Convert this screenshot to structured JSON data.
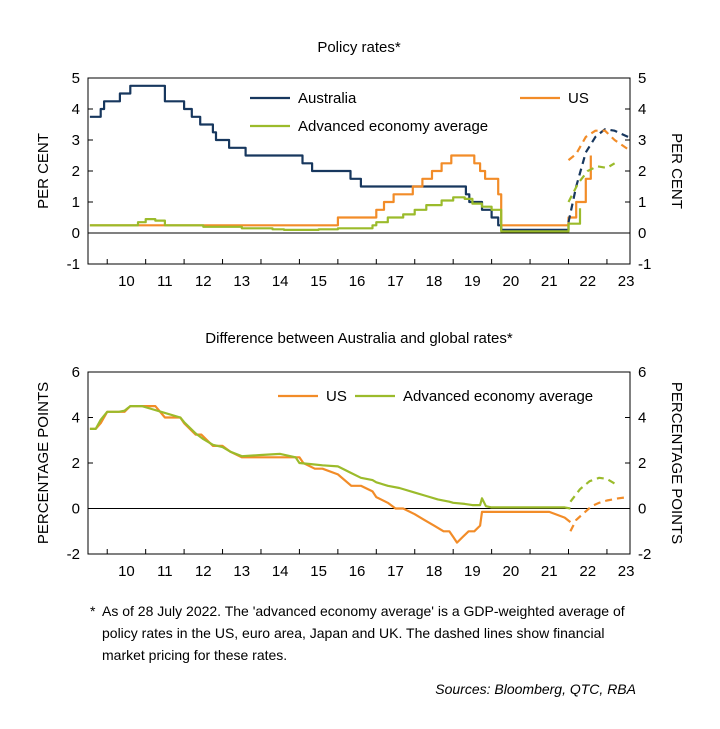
{
  "chart_data": [
    {
      "type": "line",
      "title": "Policy rates*",
      "ylabel_left": "PER CENT",
      "ylabel_right": "PER CENT",
      "ylim": [
        -1,
        5
      ],
      "yticks": [
        "-1",
        "0",
        "1",
        "2",
        "3",
        "4",
        "5"
      ],
      "xlim": [
        2009.5,
        2023.6
      ],
      "xticks": [
        "10",
        "11",
        "12",
        "13",
        "14",
        "15",
        "16",
        "17",
        "18",
        "19",
        "20",
        "21",
        "22",
        "23"
      ],
      "legend": [
        "Australia",
        "US",
        "Advanced economy average"
      ],
      "legend_placement": "top",
      "series": [
        {
          "name": "Australia",
          "color": "#17375e",
          "step": true,
          "x": [
            2009.55,
            2009.75,
            2009.83,
            2009.92,
            2010.0,
            2010.25,
            2010.33,
            2010.42,
            2010.5,
            2010.6,
            2010.9,
            2011.25,
            2011.5,
            2011.83,
            2012.0,
            2012.2,
            2012.42,
            2012.5,
            2012.75,
            2012.83,
            2013.0,
            2013.17,
            2013.33,
            2013.6,
            2014.0,
            2014.5,
            2014.75,
            2015.0,
            2015.08,
            2015.2,
            2015.33,
            2015.5,
            2016.0,
            2016.25,
            2016.33,
            2016.6,
            2016.9,
            2017.0,
            2017.5,
            2018.0,
            2018.5,
            2018.9,
            2019.0,
            2019.33,
            2019.42,
            2019.5,
            2019.75,
            2019.83,
            2020.0,
            2020.17,
            2020.25,
            2020.5,
            2020.83,
            2021.0,
            2021.5,
            2021.8,
            2022.0
          ],
          "y": [
            3.75,
            3.75,
            4.0,
            4.25,
            4.25,
            4.25,
            4.5,
            4.5,
            4.5,
            4.75,
            4.75,
            4.75,
            4.25,
            4.25,
            4.0,
            3.75,
            3.5,
            3.5,
            3.25,
            3.0,
            3.0,
            2.75,
            2.75,
            2.5,
            2.5,
            2.5,
            2.5,
            2.5,
            2.25,
            2.25,
            2.0,
            2.0,
            2.0,
            2.0,
            1.75,
            1.5,
            1.5,
            1.5,
            1.5,
            1.5,
            1.5,
            1.5,
            1.5,
            1.25,
            1.0,
            1.0,
            0.75,
            0.75,
            0.5,
            0.25,
            0.1,
            0.1,
            0.1,
            0.1,
            0.1,
            0.1,
            0.35
          ]
        },
        {
          "name": "US",
          "color": "#f28c28",
          "step": true,
          "x": [
            2009.55,
            2010.0,
            2011.0,
            2012.0,
            2013.0,
            2014.0,
            2015.0,
            2015.9,
            2016.0,
            2016.9,
            2017.0,
            2017.2,
            2017.45,
            2017.95,
            2018.2,
            2018.45,
            2018.7,
            2018.95,
            2019.2,
            2019.55,
            2019.7,
            2019.83,
            2020.17,
            2020.25,
            2021.0,
            2021.9,
            2022.0,
            2022.2,
            2022.45,
            2022.58
          ],
          "y": [
            0.25,
            0.25,
            0.25,
            0.25,
            0.25,
            0.25,
            0.25,
            0.25,
            0.5,
            0.5,
            0.75,
            1.0,
            1.25,
            1.5,
            1.75,
            2.0,
            2.25,
            2.5,
            2.5,
            2.25,
            2.0,
            1.75,
            1.25,
            0.25,
            0.25,
            0.25,
            0.5,
            1.0,
            1.75,
            2.5
          ]
        },
        {
          "name": "Advanced economy average",
          "color": "#9bbb2b",
          "step": true,
          "x": [
            2009.55,
            2010.0,
            2010.8,
            2011.0,
            2011.25,
            2011.5,
            2012.0,
            2012.5,
            2013.0,
            2013.5,
            2014.0,
            2014.3,
            2014.6,
            2015.0,
            2015.5,
            2016.0,
            2016.5,
            2016.9,
            2017.0,
            2017.3,
            2017.7,
            2018.0,
            2018.3,
            2018.7,
            2019.0,
            2019.3,
            2019.5,
            2019.75,
            2020.0,
            2020.25,
            2021.0,
            2021.9,
            2022.0,
            2022.3
          ],
          "y": [
            0.25,
            0.25,
            0.35,
            0.45,
            0.4,
            0.25,
            0.25,
            0.2,
            0.2,
            0.15,
            0.15,
            0.12,
            0.1,
            0.1,
            0.12,
            0.15,
            0.15,
            0.25,
            0.35,
            0.5,
            0.6,
            0.75,
            0.9,
            1.05,
            1.15,
            1.1,
            0.95,
            0.85,
            0.75,
            0.05,
            0.05,
            0.05,
            0.3,
            0.8
          ]
        },
        {
          "name": "Australia (market pricing)",
          "color": "#17375e",
          "dashed": true,
          "x": [
            2022.0,
            2022.2,
            2022.45,
            2022.7,
            2022.95,
            2023.2,
            2023.55
          ],
          "y": [
            0.35,
            1.5,
            2.6,
            3.1,
            3.35,
            3.3,
            3.1
          ]
        },
        {
          "name": "US (market pricing)",
          "color": "#f28c28",
          "dashed": true,
          "x": [
            2022.0,
            2022.2,
            2022.45,
            2022.7,
            2022.95,
            2023.2,
            2023.55
          ],
          "y": [
            2.35,
            2.55,
            3.1,
            3.3,
            3.3,
            3.0,
            2.7
          ]
        },
        {
          "name": "Advanced economy average (market pricing)",
          "color": "#9bbb2b",
          "dashed": true,
          "x": [
            2022.0,
            2022.25,
            2022.5,
            2022.75,
            2023.0,
            2023.2
          ],
          "y": [
            1.0,
            1.6,
            2.0,
            2.15,
            2.1,
            2.25
          ]
        }
      ]
    },
    {
      "type": "line",
      "title": "Difference between Australia and global rates*",
      "ylabel_left": "PERCENTAGE POINTS",
      "ylabel_right": "PERCENTAGE POINTS",
      "ylim": [
        -2,
        6
      ],
      "yticks": [
        "-2",
        "0",
        "2",
        "4",
        "6"
      ],
      "xlim": [
        2009.5,
        2023.6
      ],
      "xticks": [
        "10",
        "11",
        "12",
        "13",
        "14",
        "15",
        "16",
        "17",
        "18",
        "19",
        "20",
        "21",
        "22",
        "23"
      ],
      "legend": [
        "US",
        "Advanced economy average"
      ],
      "legend_placement": "top-right",
      "series": [
        {
          "name": "US",
          "color": "#f28c28",
          "x": [
            2009.55,
            2009.7,
            2009.83,
            2010.0,
            2010.3,
            2010.45,
            2010.6,
            2011.25,
            2011.5,
            2011.9,
            2012.0,
            2012.3,
            2012.45,
            2012.75,
            2013.0,
            2013.2,
            2013.5,
            2014.0,
            2014.5,
            2015.0,
            2015.1,
            2015.4,
            2015.6,
            2016.0,
            2016.35,
            2016.6,
            2016.9,
            2017.0,
            2017.3,
            2017.5,
            2017.7,
            2018.0,
            2018.25,
            2018.5,
            2018.75,
            2018.9,
            2019.0,
            2019.1,
            2019.25,
            2019.4,
            2019.55,
            2019.7,
            2019.75,
            2020.0,
            2020.5,
            2021.0,
            2021.5,
            2021.9,
            2022.05
          ],
          "y": [
            3.5,
            3.5,
            3.75,
            4.25,
            4.25,
            4.25,
            4.5,
            4.5,
            4.0,
            4.0,
            3.75,
            3.25,
            3.25,
            2.75,
            2.75,
            2.5,
            2.25,
            2.25,
            2.25,
            2.25,
            2.0,
            1.75,
            1.75,
            1.5,
            1.0,
            1.0,
            0.75,
            0.5,
            0.25,
            0.0,
            0.0,
            -0.25,
            -0.5,
            -0.75,
            -1.0,
            -1.0,
            -1.25,
            -1.5,
            -1.25,
            -1.0,
            -1.0,
            -0.75,
            -0.15,
            -0.15,
            -0.15,
            -0.15,
            -0.15,
            -0.4,
            -0.6
          ]
        },
        {
          "name": "Advanced economy average",
          "color": "#9bbb2b",
          "x": [
            2009.55,
            2009.7,
            2009.83,
            2010.0,
            2010.3,
            2010.45,
            2010.6,
            2010.9,
            2011.2,
            2011.5,
            2011.9,
            2012.0,
            2012.3,
            2012.5,
            2012.75,
            2013.0,
            2013.2,
            2013.5,
            2014.0,
            2014.5,
            2014.9,
            2015.0,
            2015.3,
            2015.6,
            2016.0,
            2016.3,
            2016.6,
            2016.9,
            2017.0,
            2017.3,
            2017.6,
            2018.0,
            2018.3,
            2018.6,
            2018.9,
            2019.0,
            2019.3,
            2019.5,
            2019.7,
            2019.75,
            2019.85,
            2020.0,
            2020.5,
            2021.0,
            2021.5,
            2021.9,
            2022.05
          ],
          "y": [
            3.5,
            3.5,
            3.9,
            4.25,
            4.25,
            4.3,
            4.5,
            4.5,
            4.35,
            4.2,
            4.0,
            3.8,
            3.3,
            3.05,
            2.8,
            2.7,
            2.5,
            2.3,
            2.35,
            2.4,
            2.25,
            2.0,
            1.95,
            1.9,
            1.85,
            1.6,
            1.35,
            1.25,
            1.15,
            1.0,
            0.9,
            0.7,
            0.55,
            0.4,
            0.3,
            0.25,
            0.2,
            0.15,
            0.15,
            0.45,
            0.1,
            0.05,
            0.05,
            0.05,
            0.05,
            0.05,
            0.0
          ]
        },
        {
          "name": "US (market pricing)",
          "color": "#f28c28",
          "dashed": true,
          "x": [
            2022.05,
            2022.2,
            2022.4,
            2022.6,
            2022.8,
            2023.0,
            2023.3,
            2023.55
          ],
          "y": [
            -1.0,
            -0.5,
            -0.2,
            0.1,
            0.25,
            0.35,
            0.45,
            0.5
          ]
        },
        {
          "name": "Advanced economy average (market pricing)",
          "color": "#9bbb2b",
          "dashed": true,
          "x": [
            2022.05,
            2022.3,
            2022.55,
            2022.8,
            2023.0,
            2023.2
          ],
          "y": [
            0.3,
            0.85,
            1.2,
            1.35,
            1.3,
            1.1
          ]
        }
      ]
    }
  ],
  "footnote": {
    "star": "*",
    "text": "As of 28 July 2022. The 'advanced economy average' is a GDP-weighted average of policy rates in the US, euro area, Japan and UK. The dashed lines show financial market pricing for these rates."
  },
  "sources": "Sources: Bloomberg, QTC, RBA"
}
